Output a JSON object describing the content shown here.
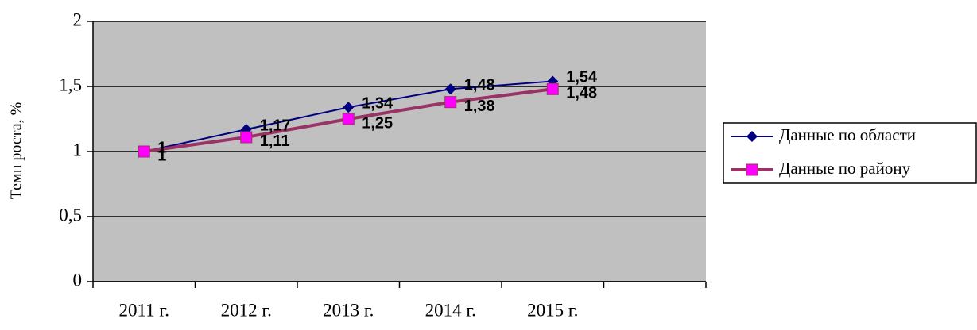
{
  "chart_data": {
    "type": "line",
    "y_label": "Темп роста, %",
    "categories": [
      "2011 г.",
      "2012 г.",
      "2013 г.",
      "2014 г.",
      "2015 г.",
      null
    ],
    "series": [
      {
        "name": "Данные по области",
        "color": "#000080",
        "marker_color": "#000080",
        "marker": "diamond",
        "values": [
          1,
          1.17,
          1.34,
          1.48,
          1.54,
          null
        ],
        "value_labels": [
          "1",
          "1,17",
          "1,34",
          "1,48",
          "1,54",
          null
        ]
      },
      {
        "name": "Данные по району",
        "color": "#993366",
        "marker_color": "#ff00ff",
        "marker": "square",
        "values": [
          1,
          1.11,
          1.25,
          1.38,
          1.48,
          null
        ],
        "value_labels": [
          "1",
          "1,11",
          "1,25",
          "1,38",
          "1,48",
          null
        ]
      }
    ],
    "ylim": [
      0,
      2
    ],
    "yticks": [
      0,
      {
        "value": 0.5,
        "label": "0,5"
      },
      1,
      {
        "value": 1.5,
        "label": "1,5"
      },
      2
    ],
    "grid": true,
    "plot_background": "#c0c0c0",
    "legend": "right"
  }
}
